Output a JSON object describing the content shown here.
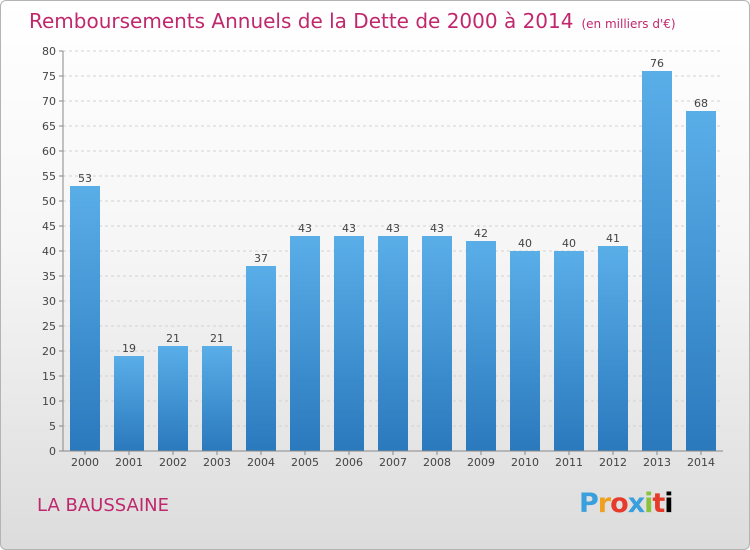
{
  "title": "Remboursements Annuels de la Dette de 2000 à 2014",
  "unit": "(en milliers d'€)",
  "place": "LA BAUSSAINE",
  "logo": [
    "P",
    "r",
    "o",
    "x",
    "i",
    "t",
    "i"
  ],
  "colors": {
    "bar_light": "#5aaee8",
    "bar_dark": "#2a79bd",
    "title": "#c0286e"
  },
  "chart_data": {
    "type": "bar",
    "title": "Remboursements Annuels de la Dette de 2000 à 2014",
    "xlabel": "",
    "ylabel": "",
    "ylim": [
      0,
      80
    ],
    "yticks": [
      0,
      5,
      10,
      15,
      20,
      25,
      30,
      35,
      40,
      45,
      50,
      55,
      60,
      65,
      70,
      75,
      80
    ],
    "categories": [
      "2000",
      "2001",
      "2002",
      "2003",
      "2004",
      "2005",
      "2006",
      "2007",
      "2008",
      "2009",
      "2010",
      "2011",
      "2012",
      "2013",
      "2014"
    ],
    "values": [
      53,
      19,
      21,
      21,
      37,
      43,
      43,
      43,
      43,
      42,
      40,
      40,
      41,
      76,
      68
    ]
  }
}
